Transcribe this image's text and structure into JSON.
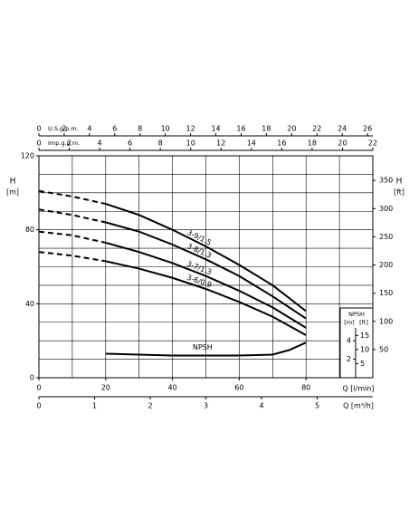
{
  "chart_data": {
    "type": "line",
    "x_label": "Q [l/min]",
    "y_label": "H",
    "y_unit": "[m]",
    "xlim": [
      0,
      100
    ],
    "xticks": [
      0,
      20,
      40,
      60,
      80
    ],
    "ylim": [
      0,
      120
    ],
    "yticks": [
      0,
      40,
      80,
      120
    ],
    "grid_x": [
      10,
      20,
      30,
      40,
      50,
      60,
      70,
      80,
      90
    ],
    "grid_y": [
      10,
      20,
      30,
      40,
      50,
      60,
      70,
      80,
      90,
      100,
      110
    ],
    "ft_axis": {
      "label": "H",
      "unit": "[ft]",
      "lim": [
        0,
        393.7
      ],
      "ticks": [
        50,
        100,
        150,
        200,
        250,
        300,
        350
      ]
    },
    "top_axes": [
      {
        "label": "U.S.g.p.m.",
        "lim": [
          0,
          26.42
        ],
        "ticks": [
          0,
          2,
          4,
          6,
          8,
          10,
          12,
          14,
          16,
          18,
          20,
          22,
          24,
          26
        ]
      },
      {
        "label": "Imp.g.p.m.",
        "lim": [
          0,
          22
        ],
        "ticks": [
          0,
          2,
          4,
          6,
          8,
          10,
          12,
          14,
          16,
          18,
          20,
          22
        ]
      }
    ],
    "bottom_axis": {
      "label": "Q [m³/h]",
      "lim": [
        0,
        6
      ],
      "ticks": [
        0,
        1,
        2,
        3,
        4,
        5
      ]
    },
    "x": [
      0,
      10,
      20,
      30,
      40,
      50,
      60,
      70,
      80
    ],
    "solid_from": 20,
    "series": [
      {
        "name": "3-9/1.5",
        "color": "#000000",
        "values": [
          101,
          98,
          94,
          88,
          80,
          71,
          61,
          50,
          36
        ]
      },
      {
        "name": "3-8/1.3",
        "color": "#000000",
        "values": [
          91,
          88,
          84,
          79,
          72,
          64,
          55,
          44,
          32
        ]
      },
      {
        "name": "3-7/1.3",
        "color": "#000000",
        "values": [
          79,
          77,
          73,
          68,
          62,
          55,
          47,
          38,
          27
        ]
      },
      {
        "name": "3-6/0.9",
        "color": "#000000",
        "values": [
          68,
          66,
          63,
          59,
          54,
          48,
          41,
          33,
          23
        ]
      }
    ],
    "npsh": {
      "name": "NPSH",
      "color": "#000000",
      "x": [
        20,
        30,
        40,
        50,
        60,
        70,
        75,
        80
      ],
      "values": [
        2.6,
        2.5,
        2.4,
        2.4,
        2.4,
        2.5,
        3.0,
        3.8
      ],
      "ylim": [
        0,
        24
      ],
      "yticks": [
        2,
        4
      ],
      "unit": "[m]",
      "ft_unit": "[ft]",
      "ft_lim": [
        0,
        78.74
      ],
      "ft_ticks": [
        5,
        10,
        15
      ]
    }
  }
}
